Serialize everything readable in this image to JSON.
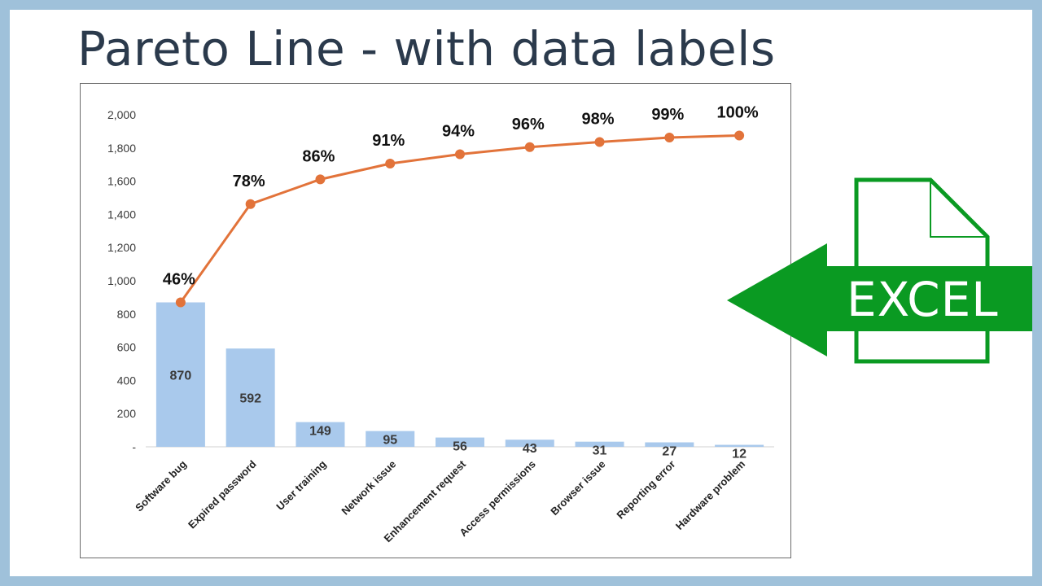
{
  "page": {
    "title": "Pareto Line - with data labels",
    "badge_text": "EXCEL",
    "badge_color": "#0a9a22"
  },
  "chart_data": {
    "type": "bar",
    "categories": [
      "Software bug",
      "Expired password",
      "User training",
      "Network issue",
      "Enhancement request",
      "Access permissions",
      "Browser issue",
      "Reporting error",
      "Hardware problem"
    ],
    "series": [
      {
        "type": "bar",
        "values": [
          870,
          592,
          149,
          95,
          56,
          43,
          31,
          27,
          12
        ],
        "labels": [
          "870",
          "592",
          "149",
          "95",
          "56",
          "43",
          "31",
          "27",
          "12"
        ],
        "color": "#a9c9ec"
      },
      {
        "type": "line",
        "values": [
          870,
          1462,
          1611,
          1706,
          1762,
          1805,
          1836,
          1863,
          1875
        ],
        "labels": [
          "46%",
          "78%",
          "86%",
          "91%",
          "94%",
          "96%",
          "98%",
          "99%",
          "100%"
        ],
        "color": "#e2733a"
      }
    ],
    "ylim": [
      0,
      2000
    ],
    "yticks": [
      0,
      200,
      400,
      600,
      800,
      1000,
      1200,
      1400,
      1600,
      1800,
      2000
    ],
    "ytick_labels": [
      "-",
      "200",
      "400",
      "600",
      "800",
      "1,000",
      "1,200",
      "1,400",
      "1,600",
      "1,800",
      "2,000"
    ],
    "grid": false,
    "legend": "none"
  }
}
